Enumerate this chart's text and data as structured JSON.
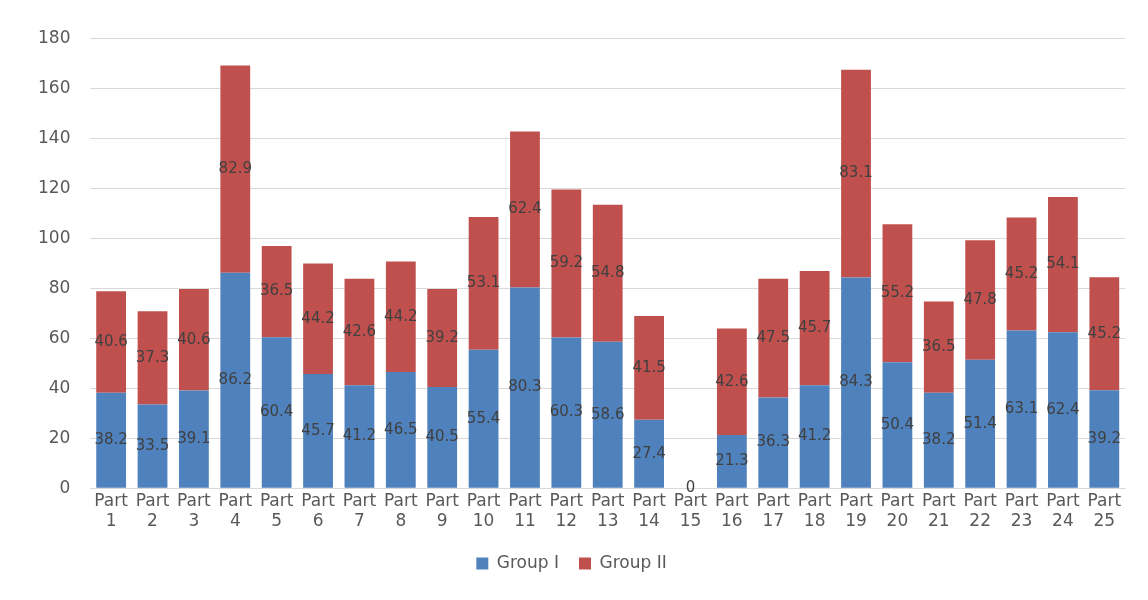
{
  "chart_data": {
    "type": "bar",
    "stacked": true,
    "categories": [
      "Part 1",
      "Part 2",
      "Part 3",
      "Part 4",
      "Part 5",
      "Part 6",
      "Part 7",
      "Part 8",
      "Part 9",
      "Part 10",
      "Part 11",
      "Part 12",
      "Part 13",
      "Part 14",
      "Part 15",
      "Part 16",
      "Part 17",
      "Part 18",
      "Part 19",
      "Part 20",
      "Part 21",
      "Part 22",
      "Part 23",
      "Part 24",
      "Part 25"
    ],
    "series": [
      {
        "name": "Group I",
        "color": "#4f81bd",
        "values": [
          38.2,
          33.5,
          39.1,
          86.2,
          60.4,
          45.7,
          41.2,
          46.5,
          40.5,
          55.4,
          80.3,
          60.3,
          58.6,
          27.4,
          0,
          21.3,
          36.3,
          41.2,
          84.3,
          50.4,
          38.2,
          51.4,
          63.1,
          62.4,
          39.2
        ],
        "value_labels": [
          "38.2",
          "33.5",
          "39.1",
          "86.2",
          "60.4",
          "45.7",
          "41.2",
          "46.5",
          "40.5",
          "55.4",
          "80.3",
          "60.3",
          "58.6",
          "27.4",
          "0",
          "21.3",
          "36.3",
          "41.2",
          "84.3",
          "50.4",
          "38.2",
          "51.4",
          "63.1",
          "62.4",
          "39.2"
        ]
      },
      {
        "name": "Group II",
        "color": "#c0504d",
        "values": [
          40.6,
          37.3,
          40.6,
          82.9,
          36.5,
          44.2,
          42.6,
          44.2,
          39.2,
          53.1,
          62.4,
          59.2,
          54.8,
          41.5,
          0,
          42.6,
          47.5,
          45.7,
          83.1,
          55.2,
          36.5,
          47.8,
          45.2,
          54.1,
          45.2
        ],
        "value_labels": [
          "40.6",
          "37.3",
          "40.6",
          "82.9",
          "36.5",
          "44.2",
          "42.6",
          "44.2",
          "39.2",
          "53.1",
          "62.4",
          "59.2",
          "54.8",
          "41.5",
          null,
          "42.6",
          "47.5",
          "45.7",
          "83.1",
          "55.2",
          "36.5",
          "47.8",
          "45.2",
          "54.1",
          "45.2"
        ]
      }
    ],
    "ylim": [
      0,
      180
    ],
    "yticks": [
      0,
      20,
      40,
      60,
      80,
      100,
      120,
      140,
      160,
      180
    ],
    "grid": "y",
    "legend": "bottom"
  }
}
